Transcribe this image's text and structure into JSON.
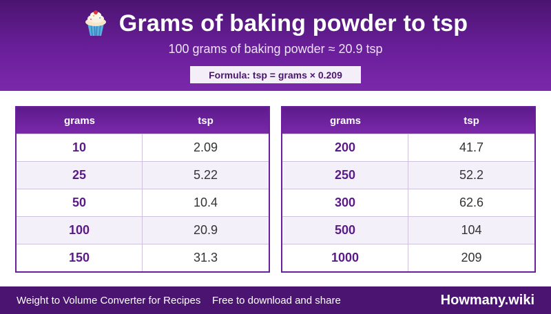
{
  "header": {
    "icon": "cupcake-icon",
    "title": "Grams of baking powder to tsp",
    "subtitle": "100 grams of baking powder ≈ 20.9 tsp",
    "formula": "Formula: tsp = grams × 0.209"
  },
  "tables": [
    {
      "headers": {
        "grams": "grams",
        "tsp": "tsp"
      },
      "rows": [
        {
          "grams": "10",
          "tsp": "2.09"
        },
        {
          "grams": "25",
          "tsp": "5.22"
        },
        {
          "grams": "50",
          "tsp": "10.4"
        },
        {
          "grams": "100",
          "tsp": "20.9"
        },
        {
          "grams": "150",
          "tsp": "31.3"
        }
      ]
    },
    {
      "headers": {
        "grams": "grams",
        "tsp": "tsp"
      },
      "rows": [
        {
          "grams": "200",
          "tsp": "41.7"
        },
        {
          "grams": "250",
          "tsp": "52.2"
        },
        {
          "grams": "300",
          "tsp": "62.6"
        },
        {
          "grams": "500",
          "tsp": "104"
        },
        {
          "grams": "1000",
          "tsp": "209"
        }
      ]
    }
  ],
  "footer": {
    "app_name": "Weight to Volume Converter for Recipes",
    "share_text": "Free to download and share",
    "brand": "Howmany.wiki"
  },
  "colors": {
    "header_purple": "#6a1f9a",
    "footer_purple": "#4a1470",
    "grams_text": "#5a1a86"
  }
}
